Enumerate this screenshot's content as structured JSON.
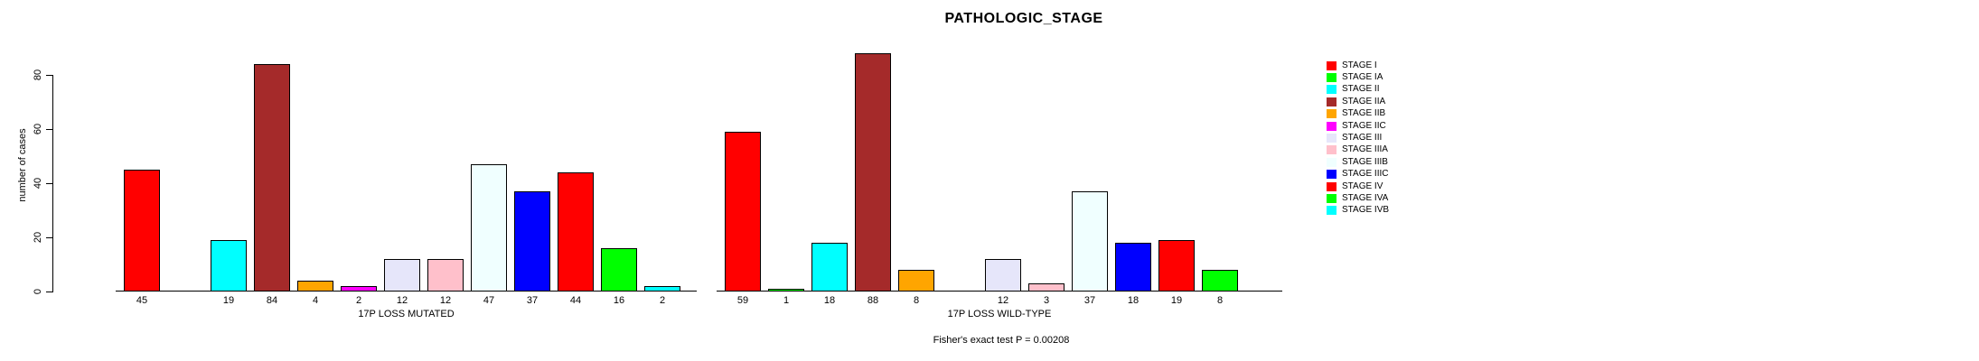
{
  "title": "PATHOLOGIC_STAGE",
  "ylabel": "number of cases",
  "footer": "Fisher's exact test P = 0.00208",
  "chart_data": {
    "type": "bar",
    "title": "PATHOLOGIC_STAGE",
    "ylabel": "number of cases",
    "xlabel": "",
    "ylim": [
      0,
      88
    ],
    "yticks": [
      0,
      20,
      40,
      60,
      80
    ],
    "grid": false,
    "legend_position": "right",
    "categories": [
      "STAGE I",
      "STAGE IA",
      "STAGE II",
      "STAGE IIA",
      "STAGE IIB",
      "STAGE IIC",
      "STAGE III",
      "STAGE IIIA",
      "STAGE IIIB",
      "STAGE IIIC",
      "STAGE IV",
      "STAGE IVA",
      "STAGE IVB"
    ],
    "colors": [
      "#FF0000",
      "#00FF00",
      "#00FFFF",
      "#A52A2A",
      "#FFA500",
      "#FF00FF",
      "#E6E6FA",
      "#FFC0CB",
      "#F0FFFF",
      "#0000FF",
      "#FF0000",
      "#00FF00",
      "#00FFFF"
    ],
    "groups": [
      {
        "label": "17P LOSS MUTATED",
        "values": [
          45,
          0,
          19,
          84,
          4,
          2,
          12,
          12,
          47,
          37,
          44,
          16,
          2
        ]
      },
      {
        "label": "17P LOSS WILD-TYPE",
        "values": [
          59,
          1,
          18,
          88,
          8,
          0,
          12,
          3,
          37,
          18,
          19,
          8,
          0
        ]
      }
    ],
    "annotation": "Fisher's exact test P = 0.00208"
  }
}
